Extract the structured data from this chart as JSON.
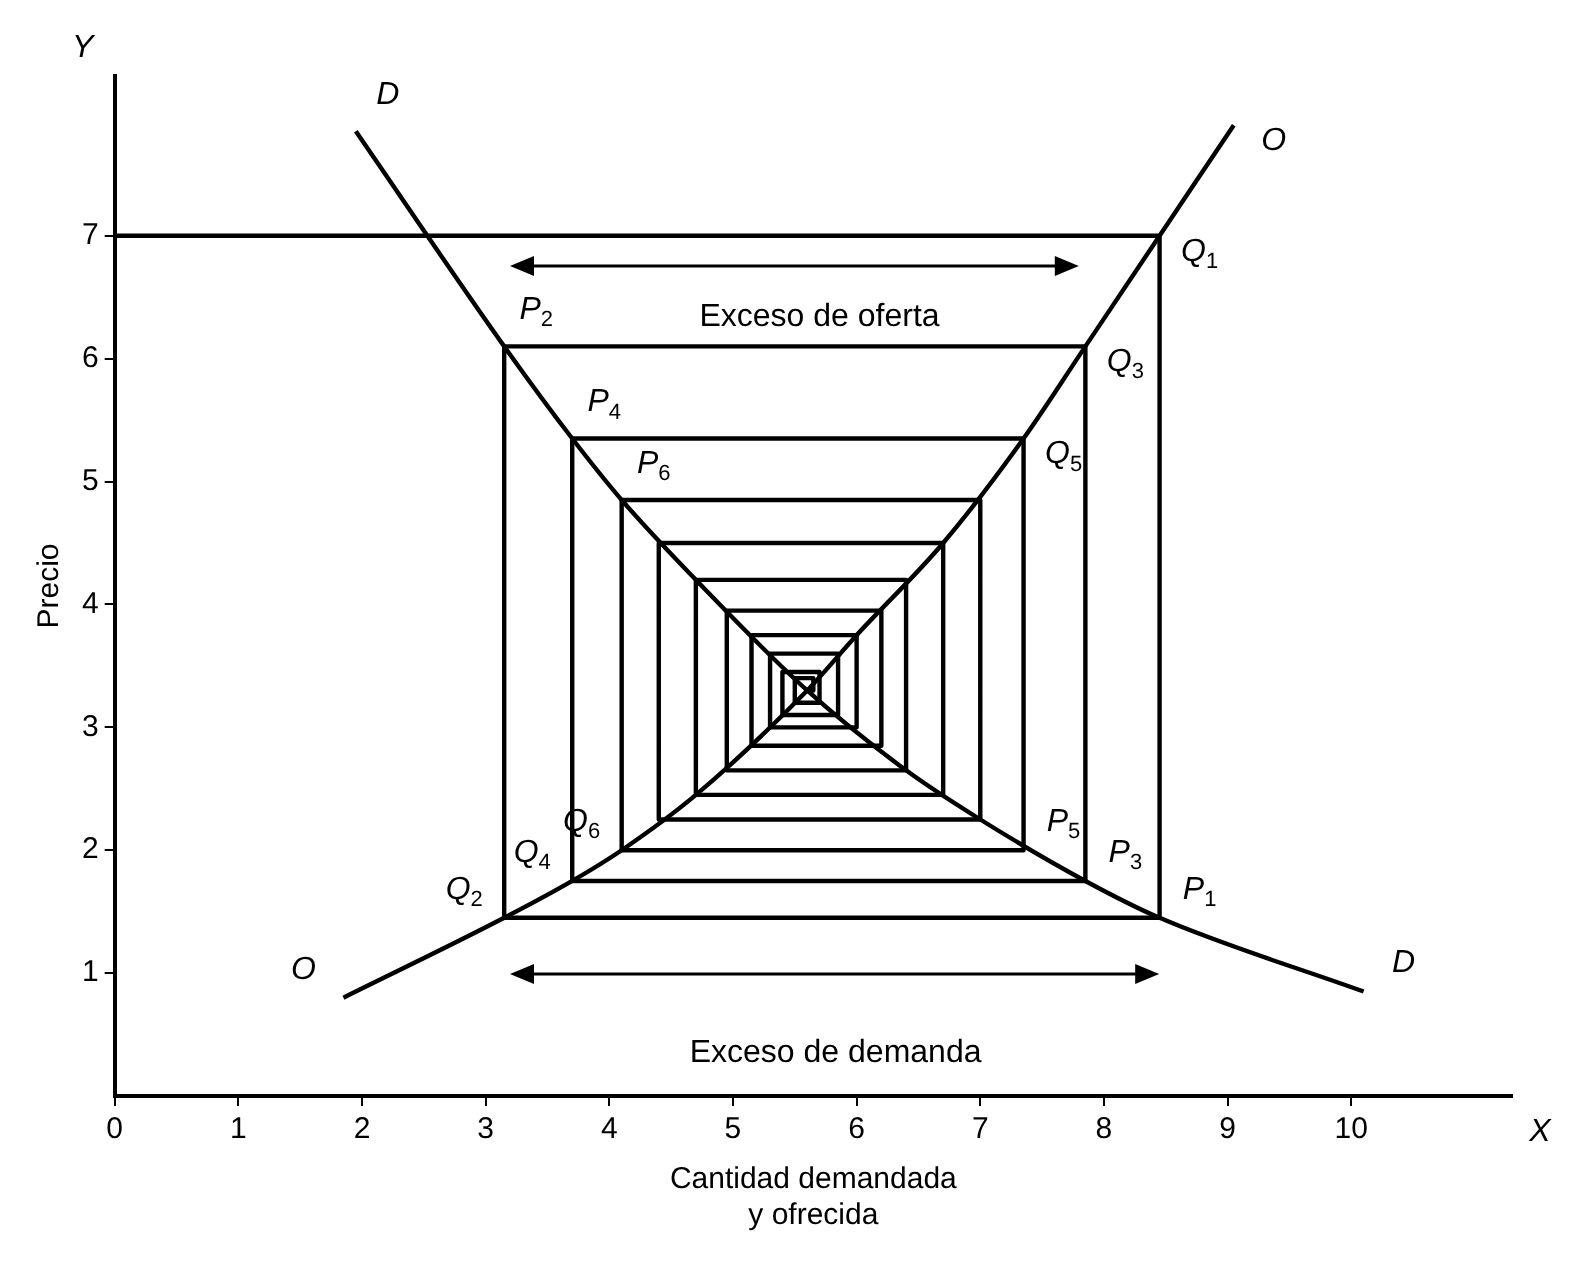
{
  "chart_data": {
    "type": "line",
    "xlabel": "Cantidad demandada\ny ofrecida",
    "ylabel": "Precio",
    "xlim": [
      0,
      11.3
    ],
    "ylim": [
      0,
      8.3
    ],
    "xticks": [
      0,
      1,
      2,
      3,
      4,
      5,
      6,
      7,
      8,
      9,
      10
    ],
    "yticks": [
      1,
      2,
      3,
      4,
      5,
      6,
      7
    ],
    "grid": false,
    "legend": false,
    "marker": "none",
    "line_style": "solid",
    "series": [
      {
        "color": "#000000",
        "x": [
          1.95,
          3.15,
          3.7,
          4.1,
          4.7,
          5.6,
          6.4,
          7.0,
          7.85,
          8.45,
          10.1
        ],
        "values": [
          7.85,
          6.1,
          5.35,
          4.85,
          4.2,
          3.3,
          2.65,
          2.25,
          1.75,
          1.45,
          0.85
        ]
      },
      {
        "color": "#000000",
        "x": [
          1.85,
          3.15,
          3.7,
          4.1,
          4.7,
          5.6,
          6.0,
          6.7,
          7.35,
          7.85,
          8.45,
          9.05
        ],
        "values": [
          0.8,
          1.45,
          1.75,
          2.0,
          2.45,
          3.3,
          3.75,
          4.5,
          5.35,
          6.1,
          7.0,
          7.9
        ]
      },
      {
        "color": "#000000",
        "x": [
          0,
          8.45,
          8.45,
          3.15,
          3.15,
          7.85,
          7.85,
          3.7,
          3.7,
          7.35,
          7.35,
          4.1,
          4.1,
          7.0,
          7.0,
          4.4,
          4.4,
          6.7,
          6.7,
          4.7,
          4.7,
          6.4,
          6.4,
          4.95,
          4.95,
          6.2,
          6.2,
          5.15,
          5.15,
          6.0,
          6.0,
          5.3,
          5.3,
          5.85,
          5.85,
          5.4,
          5.4,
          5.7,
          5.7,
          5.5,
          5.5,
          5.65,
          5.65,
          5.6
        ],
        "values": [
          7,
          7,
          1.45,
          1.45,
          6.1,
          6.1,
          1.75,
          1.75,
          5.35,
          5.35,
          2.0,
          2.0,
          4.85,
          4.85,
          2.25,
          2.25,
          4.5,
          4.5,
          2.45,
          2.45,
          4.2,
          4.2,
          2.65,
          2.65,
          3.95,
          3.95,
          2.85,
          2.85,
          3.75,
          3.75,
          3.0,
          3.0,
          3.6,
          3.6,
          3.1,
          3.1,
          3.45,
          3.45,
          3.2,
          3.2,
          3.4,
          3.4,
          3.3,
          3.3
        ]
      }
    ],
    "annotations": [
      "Y",
      "X",
      "Exceso de oferta",
      "Exceso de demanda",
      {
        "text": "Q$_{1}$",
        "x": 8.45,
        "y": 7
      },
      {
        "text": "Q$_{3}$",
        "x": 7.85,
        "y": 6.1
      },
      {
        "text": "Q$_{5}$",
        "x": 7.35,
        "y": 5.35
      },
      {
        "text": "P$_{2}$",
        "x": 3.15,
        "y": 6.1
      },
      {
        "text": "P$_{4}$",
        "x": 3.7,
        "y": 5.35
      },
      {
        "text": "P$_{6}$",
        "x": 4.1,
        "y": 4.85
      },
      {
        "text": "Q$_{6}$",
        "x": 4.1,
        "y": 2.0
      },
      {
        "text": "Q$_{4}$",
        "x": 3.7,
        "y": 1.75
      },
      {
        "text": "Q$_{2}$",
        "x": 3.15,
        "y": 1.45
      },
      {
        "text": "P$_{5}$",
        "x": 7.35,
        "y": 2.0
      },
      {
        "text": "P$_{3}$",
        "x": 7.85,
        "y": 1.75
      },
      {
        "text": "P$_{1}$",
        "x": 8.45,
        "y": 1.45
      },
      {
        "text": "D",
        "x": 1.95,
        "y": 7.85
      },
      {
        "text": "O",
        "x": 9.05,
        "y": 7.9
      },
      {
        "text": "D",
        "x": 10.1,
        "y": 0.85
      },
      {
        "text": "O",
        "x": 1.85,
        "y": 0.8
      }
    ]
  }
}
